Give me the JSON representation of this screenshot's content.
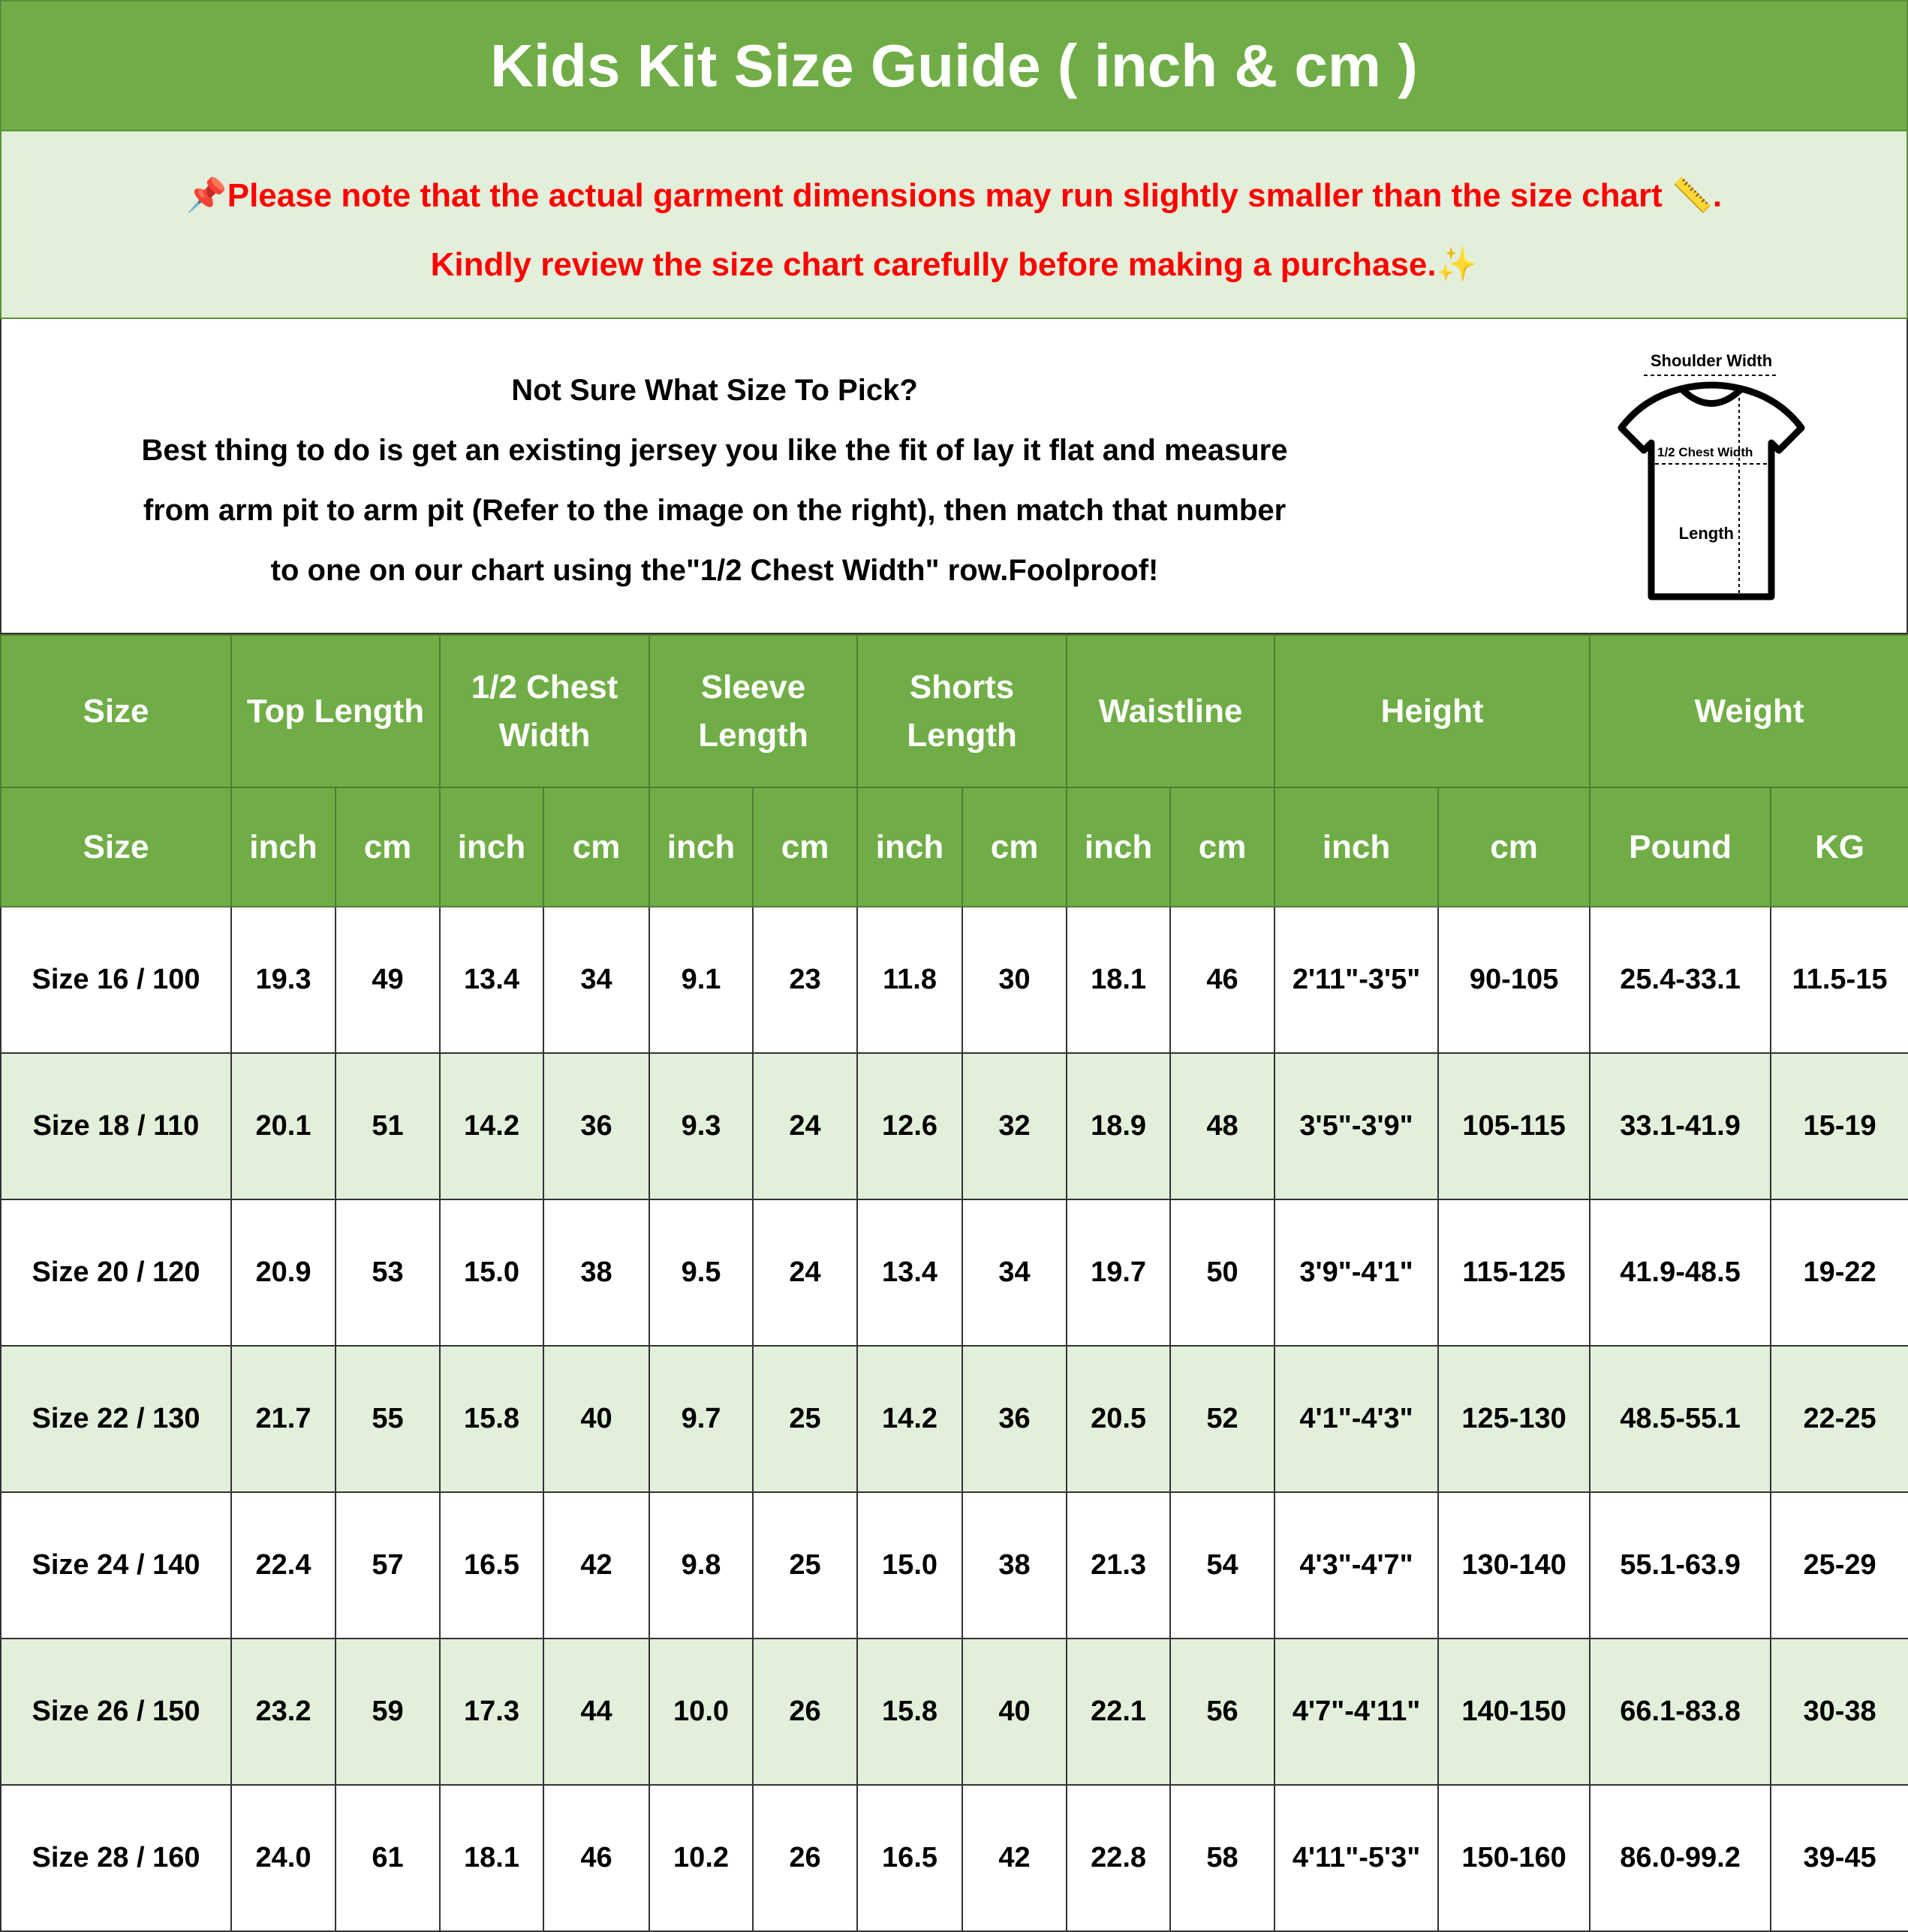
{
  "title": "Kids Kit Size Guide ( inch & cm )",
  "notice": {
    "line1": "Please note that the actual garment dimensions may run slightly smaller than the size chart",
    "line1_end": ".",
    "line2": "Kindly review the size chart carefully before making a purchase.",
    "icons": [
      "pushpin-icon",
      "ruler-icon",
      "sparkles-icon"
    ],
    "color": "#FF0000"
  },
  "info": {
    "heading": "Not Sure What Size To Pick?",
    "lines": [
      "Best thing to do is get an existing jersey you like the fit of lay it flat and measure",
      "from arm pit to arm pit (Refer to the image on the right), then match that number",
      "to one on our chart using the\"1/2 Chest Width\" row.Foolproof!"
    ]
  },
  "diagram": {
    "shoulder": "Shoulder Width",
    "chest": "1/2 Chest Width",
    "length": "Length"
  },
  "colors": {
    "header_green": "#70AD47",
    "row_alt": "#E2EFDA"
  },
  "table": {
    "groups": [
      "Size",
      "Top Length",
      "1/2 Chest Width",
      "Sleeve Length",
      "Shorts Length",
      "Waistline",
      "Height",
      "Weight"
    ],
    "subheaders": [
      "Size",
      "inch",
      "cm",
      "inch",
      "cm",
      "inch",
      "cm",
      "inch",
      "cm",
      "inch",
      "cm",
      "inch",
      "cm",
      "Pound",
      "KG"
    ],
    "rows": [
      [
        "Size 16 / 100",
        "19.3",
        "49",
        "13.4",
        "34",
        "9.1",
        "23",
        "11.8",
        "30",
        "18.1",
        "46",
        "2'11\"-3'5\"",
        "90-105",
        "25.4-33.1",
        "11.5-15"
      ],
      [
        "Size 18 / 110",
        "20.1",
        "51",
        "14.2",
        "36",
        "9.3",
        "24",
        "12.6",
        "32",
        "18.9",
        "48",
        "3'5\"-3'9\"",
        "105-115",
        "33.1-41.9",
        "15-19"
      ],
      [
        "Size 20 / 120",
        "20.9",
        "53",
        "15.0",
        "38",
        "9.5",
        "24",
        "13.4",
        "34",
        "19.7",
        "50",
        "3'9\"-4'1\"",
        "115-125",
        "41.9-48.5",
        "19-22"
      ],
      [
        "Size 22 / 130",
        "21.7",
        "55",
        "15.8",
        "40",
        "9.7",
        "25",
        "14.2",
        "36",
        "20.5",
        "52",
        "4'1\"-4'3\"",
        "125-130",
        "48.5-55.1",
        "22-25"
      ],
      [
        "Size 24 / 140",
        "22.4",
        "57",
        "16.5",
        "42",
        "9.8",
        "25",
        "15.0",
        "38",
        "21.3",
        "54",
        "4'3\"-4'7\"",
        "130-140",
        "55.1-63.9",
        "25-29"
      ],
      [
        "Size 26 / 150",
        "23.2",
        "59",
        "17.3",
        "44",
        "10.0",
        "26",
        "15.8",
        "40",
        "22.1",
        "56",
        "4'7\"-4'11\"",
        "140-150",
        "66.1-83.8",
        "30-38"
      ],
      [
        "Size 28 / 160",
        "24.0",
        "61",
        "18.1",
        "46",
        "10.2",
        "26",
        "16.5",
        "42",
        "22.8",
        "58",
        "4'11\"-5'3\"",
        "150-160",
        "86.0-99.2",
        "39-45"
      ]
    ]
  }
}
